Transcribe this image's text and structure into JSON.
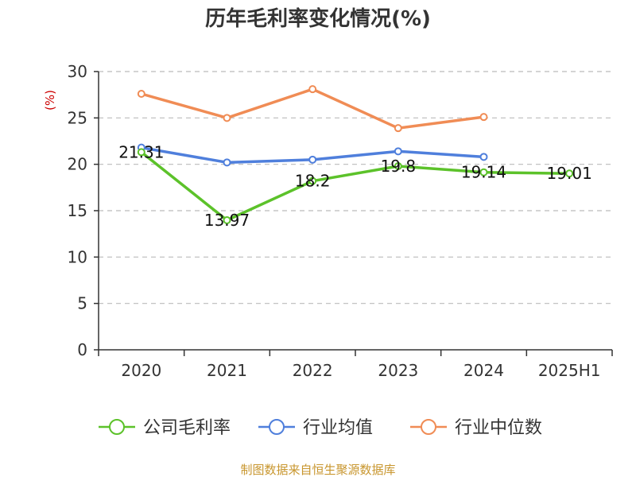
{
  "colors": {
    "gross_margin": "#5cc22a",
    "industry_avg": "#4f7fdc",
    "industry_median": "#f08c55",
    "axis": "#333333",
    "grid": "#bbbbbb",
    "unit": "#cc0000",
    "source": "#c8962e"
  },
  "chart_data": {
    "type": "line",
    "title": "历年毛利率变化情况(%)",
    "unit_label": "(%)",
    "categories": [
      "2020",
      "2021",
      "2022",
      "2023",
      "2024",
      "2025H1"
    ],
    "ylim": [
      0,
      30
    ],
    "yticks": [
      "0",
      "5",
      "10",
      "15",
      "20",
      "25",
      "30"
    ],
    "grid": "horizontal-dashed",
    "legend_position": "bottom",
    "series": [
      {
        "name": "公司毛利率",
        "color_key": "gross_margin",
        "values": [
          21.31,
          13.97,
          18.2,
          19.8,
          19.14,
          19.01
        ],
        "labels": [
          "21.31",
          "13.97",
          "18.2",
          "19.8",
          "19.14",
          "19.01"
        ]
      },
      {
        "name": "行业均值",
        "color_key": "industry_avg",
        "values": [
          21.8,
          20.2,
          20.5,
          21.4,
          20.8,
          null
        ]
      },
      {
        "name": "行业中位数",
        "color_key": "industry_median",
        "values": [
          27.6,
          25.0,
          28.1,
          23.9,
          25.1,
          null
        ]
      }
    ]
  },
  "footer": {
    "source": "制图数据来自恒生聚源数据库"
  }
}
